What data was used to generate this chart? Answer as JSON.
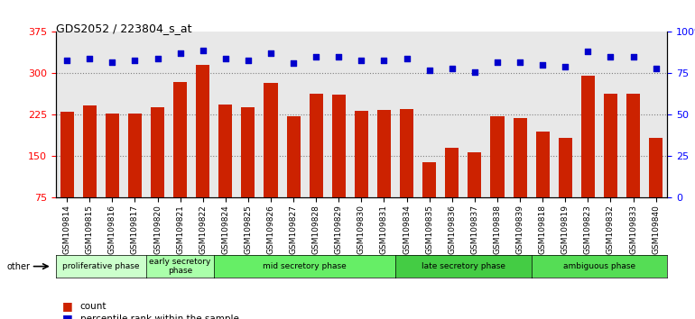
{
  "title": "GDS2052 / 223804_s_at",
  "samples": [
    "GSM109814",
    "GSM109815",
    "GSM109816",
    "GSM109817",
    "GSM109820",
    "GSM109821",
    "GSM109822",
    "GSM109824",
    "GSM109825",
    "GSM109826",
    "GSM109827",
    "GSM109828",
    "GSM109829",
    "GSM109830",
    "GSM109831",
    "GSM109834",
    "GSM109835",
    "GSM109836",
    "GSM109837",
    "GSM109838",
    "GSM109839",
    "GSM109818",
    "GSM109819",
    "GSM109823",
    "GSM109832",
    "GSM109833",
    "GSM109840"
  ],
  "counts": [
    230,
    242,
    227,
    228,
    238,
    285,
    315,
    243,
    239,
    283,
    222,
    263,
    261,
    232,
    234,
    235,
    140,
    165,
    157,
    223,
    220,
    195,
    183,
    296,
    263,
    263,
    183
  ],
  "percentiles": [
    83,
    84,
    82,
    83,
    84,
    87,
    89,
    84,
    83,
    87,
    81,
    85,
    85,
    83,
    83,
    84,
    77,
    78,
    76,
    82,
    82,
    80,
    79,
    88,
    85,
    85,
    78
  ],
  "phases": [
    {
      "label": "proliferative phase",
      "start": 0,
      "end": 4,
      "color": "#ccffcc"
    },
    {
      "label": "early secretory\nphase",
      "start": 4,
      "end": 7,
      "color": "#aaffaa"
    },
    {
      "label": "mid secretory phase",
      "start": 7,
      "end": 15,
      "color": "#66ff66"
    },
    {
      "label": "late secretory phase",
      "start": 15,
      "end": 21,
      "color": "#44dd44"
    },
    {
      "label": "ambiguous phase",
      "start": 21,
      "end": 27,
      "color": "#55ee55"
    }
  ],
  "bar_color": "#cc2200",
  "dot_color": "#0000cc",
  "ylim_left": [
    75,
    375
  ],
  "ylim_right": [
    0,
    100
  ],
  "yticks_left": [
    75,
    150,
    225,
    300,
    375
  ],
  "yticks_right": [
    0,
    25,
    50,
    75,
    100
  ],
  "grid_values": [
    150,
    225,
    300
  ],
  "background_color": "#e8e8e8"
}
